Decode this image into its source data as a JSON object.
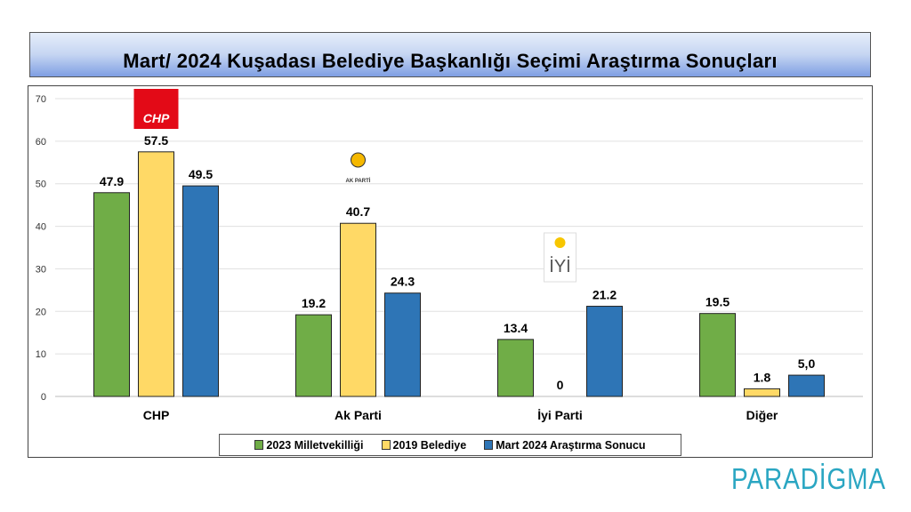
{
  "chart_data": {
    "type": "bar",
    "title": "Mart/ 2024 Kuşadası Belediye Başkanlığı Seçimi Araştırma Sonuçları",
    "categories": [
      "CHP",
      "Ak Parti",
      "İyi Parti",
      "Diğer"
    ],
    "ylim": [
      0,
      70
    ],
    "yticks": [
      0,
      10,
      20,
      30,
      40,
      50,
      60,
      70
    ],
    "grid": true,
    "legend_position": "bottom",
    "series": [
      {
        "name": "2023 Milletvekilliği",
        "color": "#70ad47",
        "values": [
          47.9,
          19.2,
          13.4,
          19.5
        ],
        "labels": [
          "47.9",
          "19.2",
          "13.4",
          "19.5"
        ]
      },
      {
        "name": "2019 Belediye",
        "color": "#ffd966",
        "values": [
          57.5,
          40.7,
          0,
          1.8
        ],
        "labels": [
          "57.5",
          "40.7",
          "0",
          "1.8"
        ]
      },
      {
        "name": "Mart 2024 Araştırma Sonucu",
        "color": "#2e75b6",
        "values": [
          49.5,
          24.3,
          21.2,
          5.0
        ],
        "labels": [
          "49.5",
          "24.3",
          "21.2",
          "5,0"
        ]
      }
    ],
    "logos": [
      "CHP",
      "AK PARTİ",
      "İYİ"
    ]
  },
  "brand": "PARADİGMA"
}
